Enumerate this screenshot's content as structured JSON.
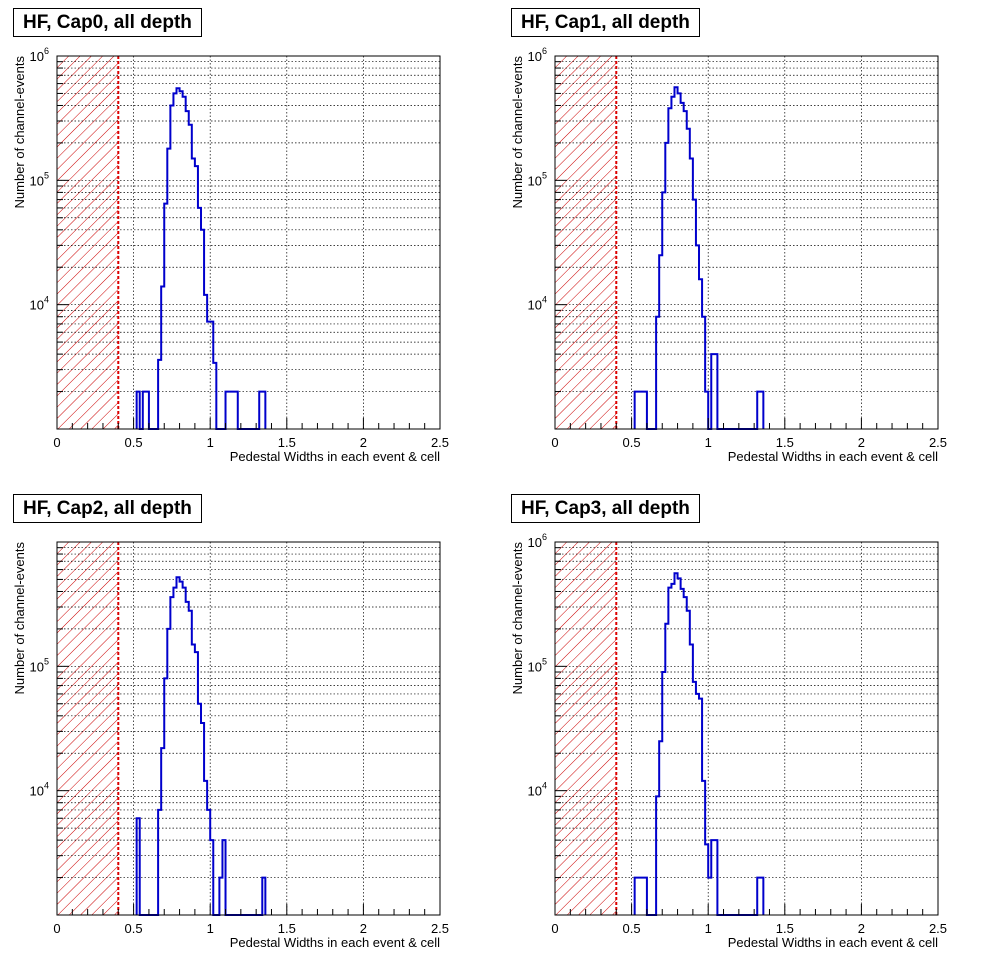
{
  "chart_data": [
    {
      "type": "histogram",
      "title": "HF, Cap0, all depth",
      "xlabel": "Pedestal Widths in each event & cell",
      "ylabel": "Number of channel-events",
      "xlim": [
        0,
        2.5
      ],
      "ylim": [
        1000,
        1000000
      ],
      "yscale": "log",
      "grid": true,
      "x_ticks": [
        "0",
        "0.5",
        "1",
        "1.5",
        "2",
        "2.5"
      ],
      "y_ticks": [
        {
          "base": "10",
          "exp": "4"
        },
        {
          "base": "10",
          "exp": "5"
        },
        {
          "base": "10",
          "exp": "6"
        }
      ],
      "cut_line_x": 0.4,
      "bin_width": 0.02,
      "bin_starts": [
        0.52,
        0.54,
        0.56,
        0.58,
        0.6,
        0.62,
        0.64,
        0.66,
        0.68,
        0.7,
        0.72,
        0.74,
        0.76,
        0.78,
        0.8,
        0.82,
        0.84,
        0.86,
        0.88,
        0.9,
        0.92,
        0.94,
        0.96,
        0.98,
        1.0,
        1.02,
        1.04,
        1.06,
        1.08,
        1.1,
        1.12,
        1.14,
        1.16,
        1.18,
        1.2,
        1.22,
        1.24,
        1.26,
        1.28,
        1.3,
        1.32,
        1.34
      ],
      "counts": [
        2000,
        0,
        2000,
        2000,
        0,
        0,
        0,
        3600,
        14000,
        65000,
        180000,
        400000,
        500000,
        550000,
        520000,
        470000,
        360000,
        280000,
        150000,
        130000,
        60000,
        40000,
        12000,
        7300,
        7300,
        3400,
        0,
        0,
        0,
        2000,
        2000,
        2000,
        2000,
        0,
        0,
        0,
        0,
        0,
        0,
        0,
        2000,
        2000
      ],
      "line_color": "#0000cc",
      "cut_color": "#dd0000",
      "hatch_color": "#cc0000"
    },
    {
      "type": "histogram",
      "title": "HF, Cap1, all depth",
      "xlabel": "Pedestal Widths in each event & cell",
      "ylabel": "Number of channel-events",
      "xlim": [
        0,
        2.5
      ],
      "ylim": [
        1000,
        1000000
      ],
      "yscale": "log",
      "grid": true,
      "x_ticks": [
        "0",
        "0.5",
        "1",
        "1.5",
        "2",
        "2.5"
      ],
      "y_ticks": [
        {
          "base": "10",
          "exp": "4"
        },
        {
          "base": "10",
          "exp": "5"
        },
        {
          "base": "10",
          "exp": "6"
        }
      ],
      "cut_line_x": 0.4,
      "bin_width": 0.02,
      "bin_starts": [
        0.52,
        0.54,
        0.56,
        0.58,
        0.6,
        0.62,
        0.64,
        0.66,
        0.68,
        0.7,
        0.72,
        0.74,
        0.76,
        0.78,
        0.8,
        0.82,
        0.84,
        0.86,
        0.88,
        0.9,
        0.92,
        0.94,
        0.96,
        0.98,
        1.0,
        1.02,
        1.04,
        1.06,
        1.08,
        1.1,
        1.12,
        1.14,
        1.16,
        1.18,
        1.2,
        1.22,
        1.24,
        1.26,
        1.28,
        1.3,
        1.32,
        1.34
      ],
      "counts": [
        2000,
        2000,
        2000,
        2000,
        0,
        0,
        0,
        8000,
        25000,
        80000,
        200000,
        380000,
        470000,
        560000,
        500000,
        420000,
        360000,
        260000,
        150000,
        70000,
        30000,
        16000,
        8000,
        2000,
        0,
        4000,
        4000,
        0,
        0,
        0,
        0,
        0,
        0,
        0,
        0,
        0,
        0,
        0,
        0,
        0,
        2000,
        2000
      ],
      "line_color": "#0000cc",
      "cut_color": "#dd0000",
      "hatch_color": "#cc0000"
    },
    {
      "type": "histogram",
      "title": "HF, Cap2, all depth",
      "xlabel": "Pedestal Widths in each event & cell",
      "ylabel": "Number of channel-events",
      "xlim": [
        0,
        2.5
      ],
      "ylim": [
        1000,
        1000000
      ],
      "yscale": "log",
      "grid": true,
      "x_ticks": [
        "0",
        "0.5",
        "1",
        "1.5",
        "2",
        "2.5"
      ],
      "y_ticks": [
        {
          "base": "10",
          "exp": "4"
        },
        {
          "base": "10",
          "exp": "5"
        },
        {
          "base": "10",
          "exp": "6"
        }
      ],
      "cut_line_x": 0.4,
      "bin_width": 0.02,
      "bin_starts": [
        0.52,
        0.54,
        0.56,
        0.58,
        0.6,
        0.62,
        0.64,
        0.66,
        0.68,
        0.7,
        0.72,
        0.74,
        0.76,
        0.78,
        0.8,
        0.82,
        0.84,
        0.86,
        0.88,
        0.9,
        0.92,
        0.94,
        0.96,
        0.98,
        1.0,
        1.02,
        1.04,
        1.06,
        1.08,
        1.1,
        1.12,
        1.14,
        1.16,
        1.18,
        1.2,
        1.22,
        1.24,
        1.26,
        1.28,
        1.3,
        1.32,
        1.34
      ],
      "counts": [
        6000,
        0,
        0,
        0,
        0,
        0,
        0,
        7000,
        22000,
        80000,
        200000,
        360000,
        430000,
        520000,
        480000,
        430000,
        330000,
        280000,
        150000,
        130000,
        50000,
        35000,
        12000,
        7000,
        4000,
        0,
        0,
        2000,
        4000,
        0,
        0,
        0,
        0,
        0,
        0,
        0,
        0,
        0,
        0,
        0,
        0,
        2000
      ],
      "line_color": "#0000cc",
      "cut_color": "#dd0000",
      "hatch_color": "#cc0000"
    },
    {
      "type": "histogram",
      "title": "HF, Cap3, all depth",
      "xlabel": "Pedestal Widths in each event & cell",
      "ylabel": "Number of channel-events",
      "xlim": [
        0,
        2.5
      ],
      "ylim": [
        1000,
        1000000
      ],
      "yscale": "log",
      "grid": true,
      "x_ticks": [
        "0",
        "0.5",
        "1",
        "1.5",
        "2",
        "2.5"
      ],
      "y_ticks": [
        {
          "base": "10",
          "exp": "4"
        },
        {
          "base": "10",
          "exp": "5"
        },
        {
          "base": "10",
          "exp": "6"
        }
      ],
      "cut_line_x": 0.4,
      "bin_width": 0.02,
      "bin_starts": [
        0.52,
        0.54,
        0.56,
        0.58,
        0.6,
        0.62,
        0.64,
        0.66,
        0.68,
        0.7,
        0.72,
        0.74,
        0.76,
        0.78,
        0.8,
        0.82,
        0.84,
        0.86,
        0.88,
        0.9,
        0.92,
        0.94,
        0.96,
        0.98,
        1.0,
        1.02,
        1.04,
        1.06,
        1.08,
        1.1,
        1.12,
        1.14,
        1.16,
        1.18,
        1.2,
        1.22,
        1.24,
        1.26,
        1.28,
        1.3,
        1.32,
        1.34
      ],
      "counts": [
        2000,
        2000,
        2000,
        2000,
        0,
        0,
        0,
        9000,
        25000,
        90000,
        220000,
        430000,
        460000,
        560000,
        510000,
        420000,
        360000,
        280000,
        150000,
        75000,
        60000,
        55000,
        12000,
        3700,
        2000,
        4000,
        4000,
        0,
        0,
        0,
        0,
        0,
        0,
        0,
        0,
        0,
        0,
        0,
        0,
        0,
        2000,
        2000
      ],
      "line_color": "#0000cc",
      "cut_color": "#dd0000",
      "hatch_color": "#cc0000"
    }
  ]
}
